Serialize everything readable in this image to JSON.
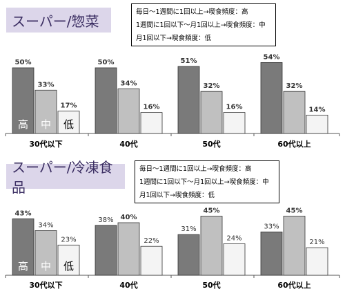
{
  "chart_data": [
    {
      "type": "bar",
      "title": "スーパー/惣菜",
      "legend": [
        "毎日～1週間に1回以上→喫食頻度：高",
        "1週間に1回以下～月1回以上→喫食頻度：中",
        "月1回以下→喫食頻度：低"
      ],
      "categories": [
        "30代以下",
        "40代",
        "50代",
        "60代以上"
      ],
      "series": [
        {
          "name": "高",
          "color": "#7a7a7a",
          "values": [
            50,
            50,
            51,
            54
          ]
        },
        {
          "name": "中",
          "color": "#c0c0c0",
          "values": [
            33,
            34,
            32,
            32
          ]
        },
        {
          "name": "低",
          "color": "#f4f4f4",
          "values": [
            17,
            16,
            16,
            14
          ]
        }
      ],
      "value_labels": [
        [
          "50%",
          "50%",
          "51%",
          "54%"
        ],
        [
          "33%",
          "34%",
          "32%",
          "32%"
        ],
        [
          "17%",
          "16%",
          "16%",
          "14%"
        ]
      ],
      "bold_labels": [
        [
          true,
          true,
          true,
          true
        ],
        [
          true,
          true,
          true,
          true
        ],
        [
          true,
          true,
          true,
          true
        ]
      ],
      "ylim": [
        0,
        60
      ]
    },
    {
      "type": "bar",
      "title": "スーパー/冷凍食品",
      "legend": [
        "毎日～1週間に1回以上→喫食頻度：高",
        "1週間に1回以下～月1回以上→喫食頻度：中",
        "月1回以下→喫食頻度：低"
      ],
      "categories": [
        "30代以下",
        "40代",
        "50代",
        "60代以上"
      ],
      "series": [
        {
          "name": "高",
          "color": "#7a7a7a",
          "values": [
            43,
            38,
            31,
            33
          ]
        },
        {
          "name": "中",
          "color": "#c0c0c0",
          "values": [
            34,
            40,
            45,
            45
          ]
        },
        {
          "name": "低",
          "color": "#f4f4f4",
          "values": [
            23,
            22,
            24,
            21
          ]
        }
      ],
      "value_labels": [
        [
          "43%",
          "38%",
          "31%",
          "33%"
        ],
        [
          "34%",
          "40%",
          "45%",
          "45%"
        ],
        [
          "23%",
          "22%",
          "24%",
          "21%"
        ]
      ],
      "bold_labels": [
        [
          true,
          false,
          false,
          false
        ],
        [
          false,
          true,
          true,
          true
        ],
        [
          false,
          false,
          false,
          false
        ]
      ],
      "ylim": [
        0,
        60
      ]
    }
  ]
}
